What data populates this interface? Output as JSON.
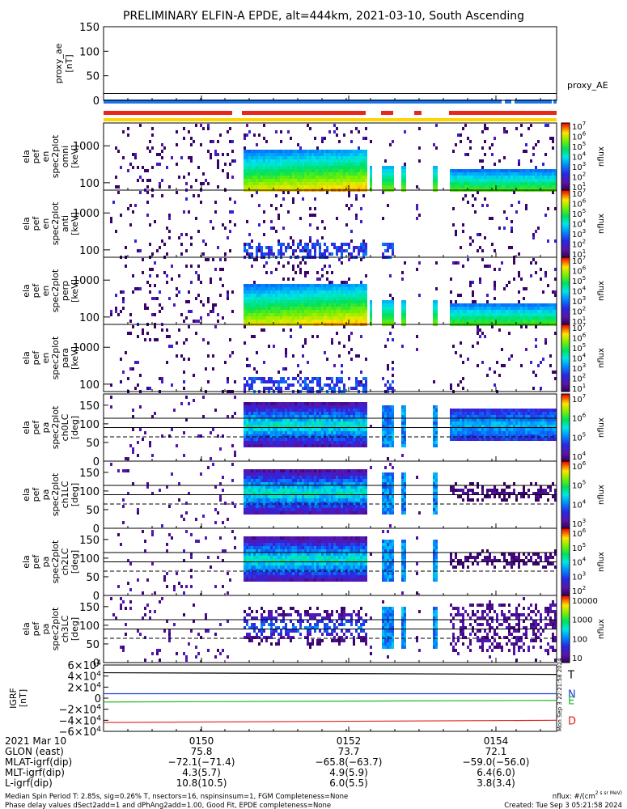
{
  "title": "PRELIMINARY ELFIN-A EPDE, alt=444km, 2021-03-10, South Ascending",
  "proxy_ae": {
    "ylabel": [
      "proxy_ae",
      "[nT]"
    ],
    "yticks": [
      "150",
      "100",
      "50",
      "0"
    ],
    "ylim": [
      0,
      150
    ],
    "legend": "proxy_AE",
    "level_nT": 14
  },
  "flag_colors": {
    "blue": "#1a73e8",
    "red": "#e8261a",
    "yellow": "#ffd400"
  },
  "energy_panels": [
    {
      "ylabel": [
        "ela",
        "pef",
        "en",
        "spec2plot",
        "omni",
        "[keV]"
      ],
      "yticks": [
        "1000",
        "100"
      ],
      "cb_unit": "nflux",
      "cb_ticks": [
        "10^7",
        "10^6",
        "10^5",
        "10^4",
        "10^3",
        "10^2",
        "10^1"
      ]
    },
    {
      "ylabel": [
        "ela",
        "pef",
        "en",
        "spec2plot",
        "anti",
        "[keV]"
      ],
      "yticks": [
        "1000",
        "100"
      ],
      "cb_unit": "nflux",
      "cb_ticks": [
        "10^7",
        "10^6",
        "10^5",
        "10^4",
        "10^3",
        "10^2",
        "10^1"
      ]
    },
    {
      "ylabel": [
        "ela",
        "pef",
        "en",
        "spec2plot",
        "perp",
        "[keV]"
      ],
      "yticks": [
        "1000",
        "100"
      ],
      "cb_unit": "nflux",
      "cb_ticks": [
        "10^7",
        "10^6",
        "10^5",
        "10^4",
        "10^3",
        "10^2",
        "10^1"
      ]
    },
    {
      "ylabel": [
        "ela",
        "pef",
        "en",
        "spec2plot",
        "para",
        "[keV]"
      ],
      "yticks": [
        "1000",
        "100"
      ],
      "cb_unit": "nflux",
      "cb_ticks": [
        "10^7",
        "10^6",
        "10^5",
        "10^4",
        "10^3",
        "10^2",
        "10^1"
      ]
    }
  ],
  "pa_panels": [
    {
      "ylabel": [
        "ela",
        "pef",
        "pa",
        "spec2plot",
        "ch0LC",
        "[deg]"
      ],
      "yticks": [
        "150",
        "100",
        "50",
        "0"
      ],
      "cb_unit": "nflux",
      "cb_ticks": [
        "10^7",
        "10^6",
        "10^5",
        "10^4"
      ]
    },
    {
      "ylabel": [
        "ela",
        "pef",
        "pa",
        "spec2plot",
        "ch1LC",
        "[deg]"
      ],
      "yticks": [
        "150",
        "100",
        "50",
        "0"
      ],
      "cb_unit": "nflux",
      "cb_ticks": [
        "10^6",
        "10^5",
        "10^4",
        "10^3"
      ]
    },
    {
      "ylabel": [
        "ela",
        "pef",
        "pa",
        "spec2plot",
        "ch2LC",
        "[deg]"
      ],
      "yticks": [
        "150",
        "100",
        "50",
        "0"
      ],
      "cb_unit": "nflux",
      "cb_ticks": [
        "10^6",
        "10^5",
        "10^4",
        "10^3",
        "10^2"
      ]
    },
    {
      "ylabel": [
        "ela",
        "pef",
        "pa",
        "spec2plot",
        "ch3LC",
        "[deg]"
      ],
      "yticks": [
        "150",
        "100",
        "50",
        "0"
      ],
      "cb_unit": "nflux",
      "cb_ticks": [
        "10000",
        "1000",
        "100",
        "10"
      ]
    }
  ],
  "igrf": {
    "ylabel": [
      "IGRF",
      "[nT]"
    ],
    "yticks": [
      "6×10^4",
      "4×10^4",
      "2×10^4",
      "0",
      "−2×10^4",
      "−4×10^4",
      "−6×10^4"
    ],
    "ylim": [
      -60000,
      60000
    ],
    "series": [
      {
        "name": "T",
        "color": "#000000",
        "start": 46000,
        "end": 43000
      },
      {
        "name": "N",
        "color": "#1a3fd6",
        "start": 8000,
        "end": 8000
      },
      {
        "name": "E",
        "color": "#22b822",
        "start": -7000,
        "end": -4000
      },
      {
        "name": "D",
        "color": "#e0201a",
        "start": -44000,
        "end": -40000
      }
    ],
    "side_text": "Mon Sep  3 22:21:58 2024"
  },
  "chart_data": {
    "type": "heatmap",
    "title": "PRELIMINARY ELFIN-A EPDE, alt=444km, 2021-03-10, South Ascending",
    "x_ticks": [
      "0150",
      "0152",
      "0154"
    ],
    "x_range": [
      "01:48:40",
      "01:55:10"
    ],
    "panels": [
      {
        "name": "proxy_ae",
        "type": "line",
        "ylim": [
          0,
          150
        ],
        "values": [
          14
        ]
      },
      {
        "name": "ela pef en spec2plot omni",
        "type": "heatmap",
        "y_scale": "log",
        "ylim_keV": [
          60,
          7000
        ],
        "color_range": [
          10,
          10000000
        ]
      },
      {
        "name": "ela pef en spec2plot anti",
        "type": "heatmap",
        "y_scale": "log",
        "ylim_keV": [
          60,
          7000
        ],
        "color_range": [
          10,
          10000000
        ]
      },
      {
        "name": "ela pef en spec2plot perp",
        "type": "heatmap",
        "y_scale": "log",
        "ylim_keV": [
          60,
          7000
        ],
        "color_range": [
          10,
          10000000
        ]
      },
      {
        "name": "ela pef en spec2plot para",
        "type": "heatmap",
        "y_scale": "log",
        "ylim_keV": [
          60,
          7000
        ],
        "color_range": [
          10,
          10000000
        ]
      },
      {
        "name": "ela pef pa spec2plot ch0LC",
        "type": "heatmap",
        "ylim_deg": [
          0,
          180
        ],
        "color_range": [
          10000,
          10000000
        ]
      },
      {
        "name": "ela pef pa spec2plot ch1LC",
        "type": "heatmap",
        "ylim_deg": [
          0,
          180
        ],
        "color_range": [
          1000,
          1000000
        ]
      },
      {
        "name": "ela pef pa spec2plot ch2LC",
        "type": "heatmap",
        "ylim_deg": [
          0,
          180
        ],
        "color_range": [
          100,
          1000000
        ]
      },
      {
        "name": "ela pef pa spec2plot ch3LC",
        "type": "heatmap",
        "ylim_deg": [
          0,
          180
        ],
        "color_range": [
          10,
          10000
        ]
      },
      {
        "name": "IGRF",
        "type": "line",
        "ylim": [
          -60000,
          60000
        ],
        "series": [
          "T",
          "N",
          "E",
          "D"
        ]
      }
    ]
  },
  "ephem": {
    "rows": [
      {
        "label": "2021 Mar 10",
        "vals": [
          "0150",
          "0152",
          "0154"
        ]
      },
      {
        "label": "GLON (east)",
        "vals": [
          "75.8",
          "73.7",
          "72.1"
        ]
      },
      {
        "label": "MLAT-igrf(dip)",
        "vals": [
          "−72.1(−71.4)",
          "−65.8(−63.7)",
          "−59.0(−56.0)"
        ]
      },
      {
        "label": "MLT-igrf(dip)",
        "vals": [
          "4.3(5.7)",
          "4.9(5.9)",
          "6.4(6.0)"
        ]
      },
      {
        "label": "L-igrf(dip)",
        "vals": [
          "10.8(10.5)",
          "6.0(5.5)",
          "3.8(3.4)"
        ]
      }
    ]
  },
  "footer": {
    "line1": "Median Spin Period T: 2.85s, sig=0.26% T, nsectors=16, nspinsinsum=1, FGM Completeness=None",
    "line2": "Phase delay values dSect2add=1 and dPhAng2add=1.00, Good Fit, EPDE completeness=None",
    "units": "nflux: #/(cm^2 s sr MeV)",
    "created": "Created: Tue Sep  3 05:21:58 2024"
  }
}
